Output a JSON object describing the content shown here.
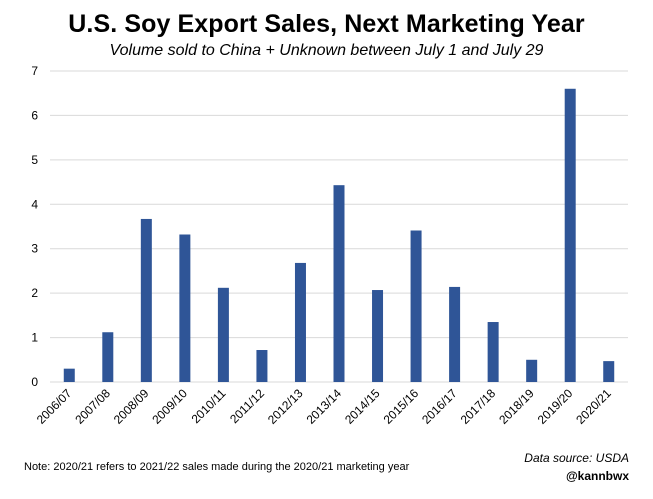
{
  "chart_data": {
    "type": "bar",
    "title": "U.S. Soy Export Sales, Next Marketing Year",
    "subtitle": "Volume sold to China + Unknown between July 1 and July 29",
    "categories": [
      "2006/07",
      "2007/08",
      "2008/09",
      "2009/10",
      "2010/11",
      "2011/12",
      "2012/13",
      "2013/14",
      "2014/15",
      "2015/16",
      "2016/17",
      "2017/18",
      "2018/19",
      "2019/20",
      "2020/21"
    ],
    "values": [
      0.3,
      1.12,
      3.67,
      3.32,
      2.12,
      0.72,
      2.68,
      4.43,
      2.07,
      3.41,
      2.14,
      1.35,
      0.5,
      6.6,
      0.47
    ],
    "ylim": [
      0,
      7
    ],
    "yticks": [
      0,
      1,
      2,
      3,
      4,
      5,
      6,
      7
    ],
    "grid": true,
    "bar_color": "#2F5597",
    "grid_color": "#D9D9D9"
  },
  "footer": {
    "note": "Note: 2020/21 refers to 2021/22 sales made during the 2020/21 marketing year",
    "source": "Data source: USDA",
    "handle": "@kannbwx"
  }
}
